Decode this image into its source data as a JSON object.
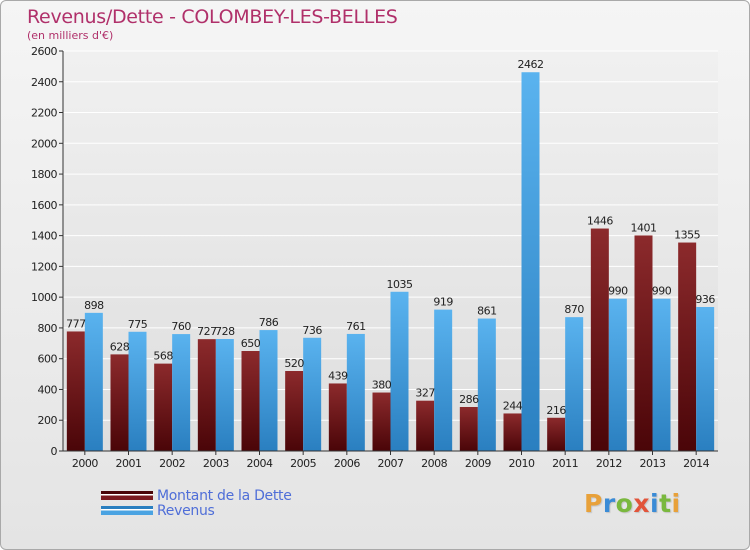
{
  "chart_data": {
    "type": "bar",
    "title": "Revenus/Dette - COLOMBEY-LES-BELLES",
    "subtitle": "(en milliers d'€)",
    "xlabel": "",
    "ylabel": "",
    "ylim": [
      0,
      2600
    ],
    "yticks": [
      0,
      200,
      400,
      600,
      800,
      1000,
      1200,
      1400,
      1600,
      1800,
      2000,
      2200,
      2400,
      2600
    ],
    "grid": true,
    "categories": [
      "2000",
      "2001",
      "2002",
      "2003",
      "2004",
      "2005",
      "2006",
      "2007",
      "2008",
      "2009",
      "2010",
      "2011",
      "2012",
      "2013",
      "2014"
    ],
    "series": [
      {
        "name": "Montant de la Dette",
        "color": "#7a1a1f",
        "values": [
          777,
          628,
          568,
          727,
          650,
          520,
          439,
          380,
          327,
          286,
          244,
          216,
          1446,
          1401,
          1355
        ]
      },
      {
        "name": "Revenus",
        "color": "#4aa3e2",
        "values": [
          898,
          775,
          760,
          728,
          786,
          736,
          761,
          1035,
          919,
          861,
          2462,
          870,
          990,
          990,
          936
        ]
      }
    ],
    "legend_position": "bottom-left"
  },
  "branding": {
    "logo": [
      {
        "char": "P",
        "color": "#e8a13a"
      },
      {
        "char": "r",
        "color": "#3a8bd6"
      },
      {
        "char": "o",
        "color": "#7ab83e"
      },
      {
        "char": "x",
        "color": "#e2543a"
      },
      {
        "char": "i",
        "color": "#3a8bd6"
      },
      {
        "char": "t",
        "color": "#7ab83e"
      },
      {
        "char": "i",
        "color": "#e8a13a"
      }
    ]
  }
}
